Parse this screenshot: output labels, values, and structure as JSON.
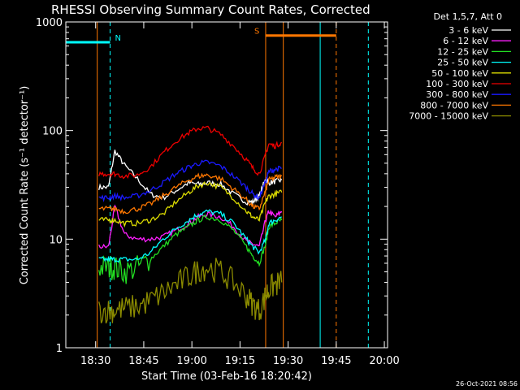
{
  "chart_data": {
    "type": "line",
    "title": "RHESSI Observing Summary Count Rates, Corrected",
    "xlabel": "Start Time (03-Feb-16 18:20:42)",
    "ylabel": "Corrected Count Rate (s⁻¹ detector⁻¹)",
    "yscale": "log",
    "ylim": [
      1,
      1000
    ],
    "xlim": [
      "18:20:42",
      "20:01"
    ],
    "xticks": [
      "18:30",
      "18:45",
      "19:00",
      "19:15",
      "19:30",
      "19:45",
      "20:00"
    ],
    "yticks": [
      "1",
      "10",
      "100",
      "1000"
    ],
    "grid": false,
    "legend_position": "right",
    "legend_title": "Det 1,5,7, Att 0",
    "footer_date": "26-Oct-2021 08:56",
    "x": [
      "18:31",
      "18:34",
      "18:36",
      "18:39",
      "18:43",
      "18:47",
      "18:51",
      "18:55",
      "18:59",
      "19:02",
      "19:05",
      "19:09",
      "19:13",
      "19:17",
      "19:19",
      "19:21",
      "19:23",
      "19:24",
      "19:26",
      "19:28"
    ],
    "series": [
      {
        "name": "3 - 6 keV",
        "color": "#ffffff",
        "values": [
          30,
          30,
          65,
          48,
          36,
          26,
          24,
          28,
          33,
          32,
          33,
          32,
          26,
          22,
          22,
          25,
          36,
          33,
          34,
          35
        ]
      },
      {
        "name": "6 - 12 keV",
        "color": "#ff1fff",
        "values": [
          8.5,
          8.5,
          20,
          11,
          10,
          10,
          10.5,
          12,
          14,
          16,
          17,
          16,
          13,
          9.5,
          9,
          8.5,
          15,
          18,
          16,
          18
        ]
      },
      {
        "name": "12 - 25 keV",
        "color": "#22dd22",
        "values": [
          5.5,
          5.5,
          5.5,
          5,
          5.5,
          6.5,
          8.5,
          11,
          13,
          15,
          16,
          15,
          12,
          8.5,
          7,
          6,
          9,
          13,
          14,
          15
        ]
      },
      {
        "name": "25 - 50 keV",
        "color": "#00ffff",
        "values": [
          6.5,
          6.5,
          6.5,
          6.5,
          6.5,
          7.5,
          10,
          12.5,
          15,
          17,
          18,
          17,
          14,
          10,
          8.5,
          7.5,
          10,
          14,
          15,
          16
        ]
      },
      {
        "name": "50 - 100 keV",
        "color": "#dddd00",
        "values": [
          15,
          15,
          15,
          14,
          14,
          15,
          17,
          22,
          27,
          31,
          33,
          30,
          24,
          18,
          16,
          15,
          22,
          25,
          26,
          27
        ]
      },
      {
        "name": "100 - 300 keV",
        "color": "#ee0000",
        "values": [
          40,
          40,
          40,
          38,
          39,
          46,
          62,
          80,
          95,
          105,
          105,
          92,
          72,
          54,
          45,
          40,
          60,
          75,
          72,
          78
        ]
      },
      {
        "name": "300 - 800 keV",
        "color": "#1a1aff",
        "values": [
          24,
          24,
          25,
          24,
          25,
          28,
          33,
          40,
          46,
          50,
          51,
          47,
          38,
          30,
          26,
          24,
          34,
          42,
          44,
          45
        ]
      },
      {
        "name": "800 - 7000 keV",
        "color": "#ff7700",
        "values": [
          19,
          19,
          19,
          18,
          19,
          21,
          25,
          30,
          35,
          38,
          39,
          36,
          29,
          23,
          20,
          19,
          28,
          35,
          37,
          38
        ]
      },
      {
        "name": "7000 - 15000 keV",
        "color": "#8b8b00",
        "values": [
          2.2,
          2.2,
          2.2,
          2.3,
          2.4,
          2.7,
          3.2,
          3.8,
          4.5,
          5.2,
          5.5,
          5,
          4,
          3,
          2.5,
          2.2,
          3,
          3.5,
          3.8,
          4
        ]
      }
    ],
    "annotations": [
      {
        "label": "N",
        "color": "#00ffff",
        "segment": [
          "18:20:42",
          "18:34:30"
        ],
        "y": 650
      },
      {
        "label": "S",
        "color": "#ff7700",
        "segment": [
          "19:23",
          "19:45"
        ],
        "y": 750
      }
    ],
    "vertical_lines": [
      {
        "time": "18:20:42",
        "color": "#00ffff",
        "style": "solid"
      },
      {
        "time": "18:34:30",
        "color": "#00ffff",
        "style": "dashed"
      },
      {
        "time": "18:30:30",
        "color": "#ff7700",
        "style": "solid"
      },
      {
        "time": "19:23",
        "color": "#ff7700",
        "style": "solid"
      },
      {
        "time": "19:28:30",
        "color": "#ff7700",
        "style": "solid"
      },
      {
        "time": "19:40",
        "color": "#00ffff",
        "style": "solid"
      },
      {
        "time": "19:45",
        "color": "#ff7700",
        "style": "dashed"
      },
      {
        "time": "19:55",
        "color": "#00ffff",
        "style": "dashed"
      }
    ]
  }
}
